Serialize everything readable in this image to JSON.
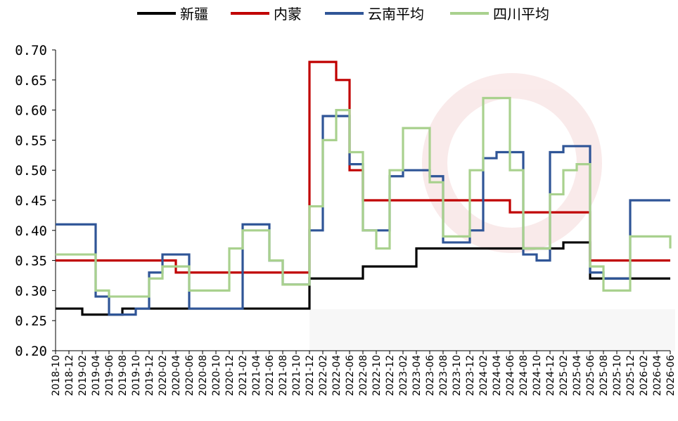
{
  "chart_data": {
    "type": "line",
    "step": true,
    "title": "",
    "xlabel": "",
    "ylabel": "",
    "ylim": [
      0.2,
      0.7
    ],
    "yticks": [
      "0.20",
      "0.25",
      "0.30",
      "0.35",
      "0.40",
      "0.45",
      "0.50",
      "0.55",
      "0.60",
      "0.65",
      "0.70"
    ],
    "grid": false,
    "legend_position": "top",
    "x": [
      "2018-10",
      "2018-12",
      "2019-02",
      "2019-04",
      "2019-06",
      "2019-08",
      "2019-10",
      "2019-12",
      "2020-02",
      "2020-04",
      "2020-06",
      "2020-08",
      "2020-10",
      "2020-12",
      "2021-02",
      "2021-04",
      "2021-06",
      "2021-08",
      "2021-10",
      "2021-12",
      "2022-02",
      "2022-04",
      "2022-06",
      "2022-08",
      "2022-10",
      "2022-12",
      "2023-02",
      "2023-04",
      "2023-06",
      "2023-08",
      "2023-10",
      "2023-12",
      "2024-02",
      "2024-04",
      "2024-06",
      "2024-08",
      "2024-10",
      "2024-12",
      "2025-02",
      "2025-04",
      "2025-06",
      "2025-08",
      "2025-10",
      "2025-12",
      "2026-02",
      "2026-04",
      "2026-06"
    ],
    "series": [
      {
        "name": "新疆",
        "color": "#000000",
        "values": [
          0.27,
          0.27,
          0.26,
          0.26,
          0.26,
          0.27,
          0.27,
          0.27,
          0.27,
          0.27,
          0.27,
          0.27,
          0.27,
          0.27,
          0.27,
          0.27,
          0.27,
          0.27,
          0.27,
          0.32,
          0.32,
          0.32,
          0.32,
          0.34,
          0.34,
          0.34,
          0.34,
          0.37,
          0.37,
          0.37,
          0.37,
          0.37,
          0.37,
          0.37,
          0.37,
          0.37,
          0.37,
          0.37,
          0.38,
          0.38,
          0.32,
          0.32,
          0.32,
          0.32,
          0.32,
          0.32,
          0.32
        ]
      },
      {
        "name": "内蒙",
        "color": "#c00000",
        "values": [
          0.35,
          0.35,
          0.35,
          0.35,
          0.35,
          0.35,
          0.35,
          0.35,
          0.35,
          0.33,
          0.33,
          0.33,
          0.33,
          0.33,
          0.33,
          0.33,
          0.33,
          0.33,
          0.33,
          0.68,
          0.68,
          0.65,
          0.5,
          0.45,
          0.45,
          0.45,
          0.45,
          0.45,
          0.45,
          0.45,
          0.45,
          0.45,
          0.45,
          0.45,
          0.43,
          0.43,
          0.43,
          0.43,
          0.43,
          0.43,
          0.35,
          0.35,
          0.35,
          0.35,
          0.35,
          0.35,
          0.35
        ]
      },
      {
        "name": "云南平均",
        "color": "#2f5597",
        "values": [
          0.41,
          0.41,
          0.41,
          0.29,
          0.26,
          0.26,
          0.27,
          0.33,
          0.36,
          0.36,
          0.27,
          0.27,
          0.27,
          0.27,
          0.41,
          0.41,
          0.35,
          0.31,
          0.31,
          0.4,
          0.59,
          0.59,
          0.51,
          0.4,
          0.4,
          0.49,
          0.5,
          0.5,
          0.49,
          0.38,
          0.38,
          0.4,
          0.52,
          0.53,
          0.53,
          0.36,
          0.35,
          0.53,
          0.54,
          0.54,
          0.33,
          0.32,
          0.32,
          0.45,
          0.45,
          0.45,
          0.45
        ]
      },
      {
        "name": "四川平均",
        "color": "#a9d18e",
        "values": [
          0.36,
          0.36,
          0.36,
          0.3,
          0.29,
          0.29,
          0.29,
          0.32,
          0.34,
          0.34,
          0.3,
          0.3,
          0.3,
          0.37,
          0.4,
          0.4,
          0.35,
          0.31,
          0.31,
          0.44,
          0.55,
          0.6,
          0.53,
          0.4,
          0.37,
          0.5,
          0.57,
          0.57,
          0.48,
          0.39,
          0.39,
          0.5,
          0.62,
          0.62,
          0.5,
          0.37,
          0.37,
          0.46,
          0.5,
          0.51,
          0.34,
          0.3,
          0.3,
          0.39,
          0.39,
          0.39,
          0.37
        ]
      }
    ]
  }
}
